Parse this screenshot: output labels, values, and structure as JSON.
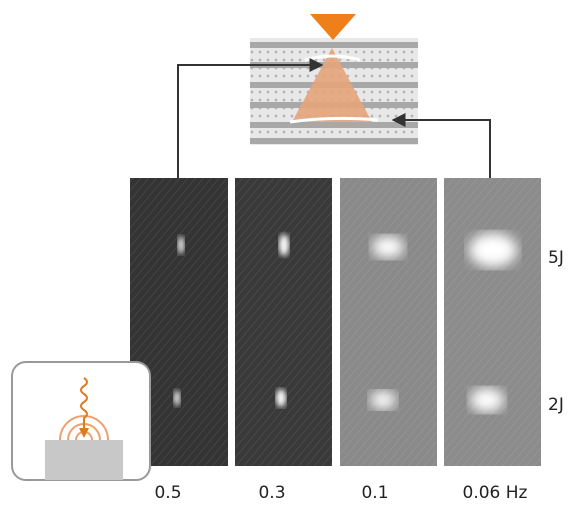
{
  "labels": {
    "energies": [
      "5J",
      "2J"
    ],
    "frequencies": [
      "0.5",
      "0.3",
      "0.1",
      "0.06 Hz"
    ]
  }
}
